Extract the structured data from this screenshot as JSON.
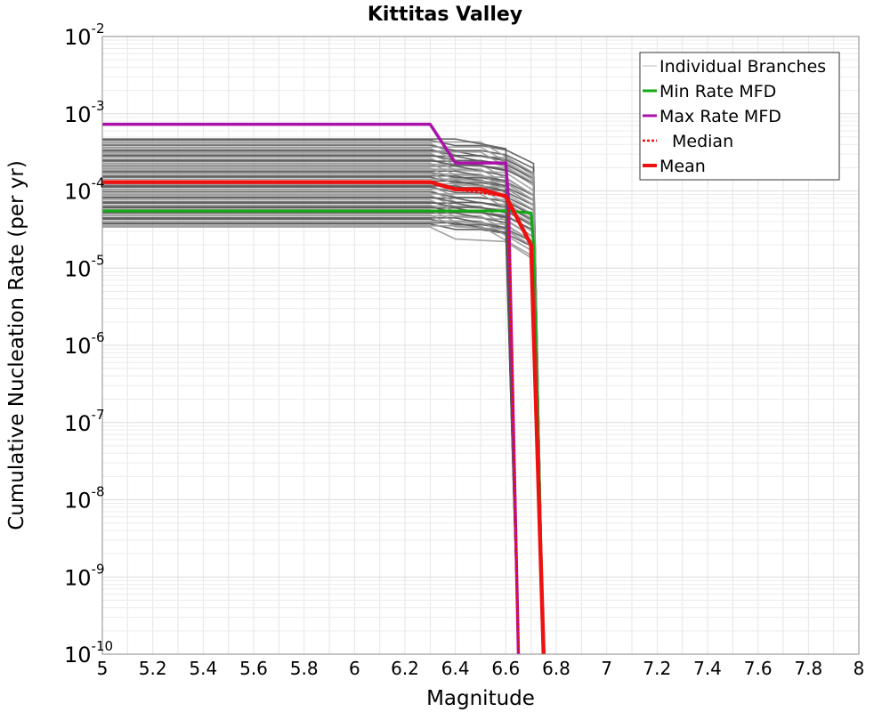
{
  "chart_data": {
    "type": "line",
    "title": "Kittitas Valley",
    "xlabel": "Magnitude",
    "ylabel": "Cumulative Nucleation Rate (per yr)",
    "xlim": [
      5,
      8
    ],
    "ylim": [
      1e-10,
      0.01
    ],
    "yscale": "log",
    "grid": true,
    "legend_position": "top-right",
    "x_ticks": [
      "5",
      "5.2",
      "5.4",
      "5.6",
      "5.8",
      "6",
      "6.2",
      "6.4",
      "6.6",
      "6.8",
      "7",
      "7.2",
      "7.4",
      "7.6",
      "7.8",
      "8"
    ],
    "y_ticks": [
      {
        "base": "10",
        "exp": "-10"
      },
      {
        "base": "10",
        "exp": "-9"
      },
      {
        "base": "10",
        "exp": "-8"
      },
      {
        "base": "10",
        "exp": "-7"
      },
      {
        "base": "10",
        "exp": "-6"
      },
      {
        "base": "10",
        "exp": "-5"
      },
      {
        "base": "10",
        "exp": "-4"
      },
      {
        "base": "10",
        "exp": "-3"
      },
      {
        "base": "10",
        "exp": "-2"
      }
    ],
    "branches": {
      "name": "Individual Branches",
      "color": "#9a9a9a",
      "dark_color": "#555555",
      "count": 60,
      "plateau_min": 3.4e-05,
      "plateau_max": 0.00048,
      "profiles": [
        {
          "x": [
            5.0,
            6.3,
            6.4,
            6.6,
            6.71,
            6.75
          ],
          "y": [
            1.0,
            1.0,
            0.7,
            0.65,
            0.38,
            1e-10
          ]
        },
        {
          "x": [
            5.0,
            6.3,
            6.4,
            6.5,
            6.6,
            6.71,
            6.75
          ],
          "y": [
            1.0,
            1.0,
            0.85,
            0.85,
            0.75,
            0.5,
            1e-10
          ]
        },
        {
          "x": [
            5.0,
            6.3,
            6.4,
            6.5,
            6.6,
            6.71,
            6.75
          ],
          "y": [
            1.0,
            1.0,
            1.0,
            1.0,
            0.65,
            0.4,
            1e-10
          ]
        },
        {
          "x": [
            5.0,
            6.3,
            6.4,
            6.6,
            6.65
          ],
          "y": [
            1.0,
            1.0,
            1.0,
            0.75,
            1e-10
          ]
        }
      ]
    },
    "series": [
      {
        "name": "Min Rate MFD",
        "color": "#11aa11",
        "width": 3,
        "dash": "",
        "x": [
          5.0,
          6.6,
          6.7,
          6.71,
          6.75
        ],
        "y": [
          5.5e-05,
          5.5e-05,
          5.2e-05,
          2e-05,
          1e-10
        ]
      },
      {
        "name": "Max Rate MFD",
        "color": "#aa11aa",
        "width": 3.5,
        "dash": "",
        "x": [
          5.0,
          6.3,
          6.4,
          6.6,
          6.61,
          6.65
        ],
        "y": [
          0.00073,
          0.00073,
          0.00023,
          0.00023,
          8e-05,
          1e-10
        ]
      },
      {
        "name": "Median",
        "color": "#ee1111",
        "width": 2.5,
        "dash": "3,2",
        "x": [
          5.0,
          6.3,
          6.4,
          6.6,
          6.61,
          6.65
        ],
        "y": [
          0.00013,
          0.00013,
          0.000105,
          8.5e-05,
          6.5e-05,
          1e-10
        ]
      },
      {
        "name": "Mean",
        "color": "#ee1111",
        "width": 4.5,
        "dash": "",
        "x": [
          5.0,
          6.3,
          6.4,
          6.5,
          6.6,
          6.7,
          6.75
        ],
        "y": [
          0.00013,
          0.00013,
          0.000105,
          0.000105,
          8.5e-05,
          2e-05,
          1e-10
        ]
      }
    ],
    "legend": [
      {
        "label": "Individual Branches",
        "color": "#bbbbbb",
        "width": 1,
        "dash": ""
      },
      {
        "label": "Min Rate MFD",
        "color": "#11aa11",
        "width": 3,
        "dash": ""
      },
      {
        "label": "Max Rate MFD",
        "color": "#aa11aa",
        "width": 3,
        "dash": ""
      },
      {
        "label": "Median",
        "color": "#ee1111",
        "width": 2.5,
        "dash": "3,2"
      },
      {
        "label": "Mean",
        "color": "#ee1111",
        "width": 4,
        "dash": ""
      }
    ]
  }
}
